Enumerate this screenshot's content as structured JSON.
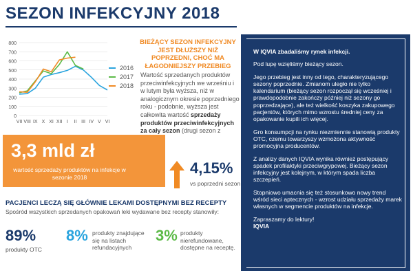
{
  "title": "SEZON INFEKCYJNY 2018",
  "chart_data": {
    "type": "line",
    "categories": [
      "VII",
      "VIII",
      "IX",
      "X",
      "XI",
      "XII",
      "I",
      "II",
      "III",
      "IV",
      "V",
      "VI"
    ],
    "ylim": [
      0,
      800
    ],
    "yticks": [
      0,
      100,
      200,
      300,
      400,
      500,
      600,
      700,
      800
    ],
    "grid": true,
    "legend_position": "right",
    "series": [
      {
        "name": "2016",
        "color": "#2aa4de",
        "values": [
          235,
          240,
          300,
          420,
          450,
          470,
          495,
          540,
          500,
          420,
          330,
          280
        ]
      },
      {
        "name": "2017",
        "color": "#5cba47",
        "values": [
          250,
          270,
          380,
          490,
          460,
          560,
          700,
          550,
          510,
          null,
          null,
          null
        ]
      },
      {
        "name": "2018",
        "color": "#f08a24",
        "values": [
          260,
          255,
          370,
          510,
          480,
          610,
          630,
          640,
          null,
          null,
          null,
          null
        ]
      }
    ]
  },
  "headline": "BIEŻĄCY SEZON INFEKCYJNY JEST DŁUŻSZY NIŻ POPRZEDNI, CHOĆ MA ŁAGODNIEJSZY PRZEBIEG",
  "body": {
    "part1": "Wartość sprzedanych produktów przeciwinfekcyjnych we wrześniu i w lutym była wyższa, niż w analogicznym okresie poprzedniego roku - podobnie, wyższa jest całkowita wartość ",
    "bold": "sprzedaży produktów przeciwinfekcyjnych za cały sezon",
    "part2": " (drugi sezon z rzędu)."
  },
  "sales": {
    "value": "3,3 mld zł",
    "desc": "wartość sprzedaży produktów na infekcje w sezonie 2018"
  },
  "growth": {
    "value": "4,15%",
    "desc": "vs poprzedni sezon"
  },
  "patients": {
    "title": "PACJENCI LECZĄ SIĘ GŁÓWNIE LEKAMI DOSTĘPNYMI BEZ RECEPTY",
    "subtitle": "Spośród wszystkich sprzedanych opakowań leki wydawane bez recepty stanowiły:",
    "stats": [
      {
        "value": "89%",
        "label": "produkty OTC",
        "color": "#1b3a6b"
      },
      {
        "value": "8%",
        "label": "produkty znajdujące się na listach refundacyjnych",
        "color": "#2aa4de"
      },
      {
        "value": "3%",
        "label": "produkty nierefundowane, dostępne na receptę.",
        "color": "#5cba47"
      }
    ]
  },
  "panel": {
    "lead": "W IQVIA zbadaliśmy rynek infekcji.",
    "p1": "Pod lupę wzięliśmy bieżący sezon.",
    "p2": "Jego przebieg jest inny od tego, charakteryzującego sezony poprzednie. Zmianom uległo nie tylko kalendarium (bieżący sezon rozpoczął się wcześniej i prawdopodobnie zakończy później niż sezony go poprzedzające), ale też wielkość koszyka zakupowego pacjentów, których mimo wzrostu średniej ceny za opakowanie kupili ich więcej.",
    "p3": "Gro konsumpcji na rynku niezmiennie stanowią produkty OTC, czemu towarzyszy wzmożona aktywność promocyjna producentów.",
    "p4": "Z analizy danych IQVIA wynika również postępujący spadek profilaktyki przeciwgrypowej. Bieżący sezon infekcyjny jest kolejnym, w którym spada liczba szczepień.",
    "p5": "Stopniowo umacnia się też stosunkowo nowy trend wśród sieci aptecznych - wzrost udziału sprzedaży marek własnych w segmencie produktów na infekcje.",
    "p6": "Zapraszamy do lektury!",
    "sig": "IQVIA"
  }
}
